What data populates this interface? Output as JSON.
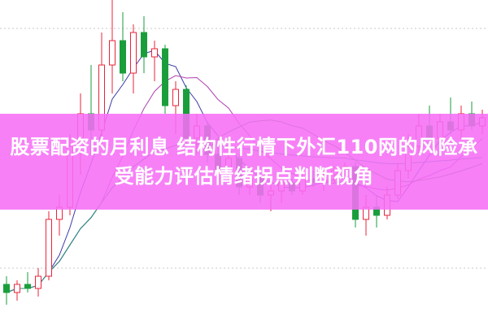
{
  "title": "股票配资的月利息 结构性行情下外汇110网的风险承受能力评估情绪拐点判断视角",
  "colors": {
    "up": "#e8243a",
    "down": "#1a9e3c",
    "banner": "#f66ef6",
    "grid": "#c8c8c8",
    "ma": [
      "#3a3aa8",
      "#b040b0",
      "#3a8a3a",
      "#2a8a8a"
    ]
  },
  "chart_data": {
    "type": "candlestick",
    "grid": "dashed horizontal",
    "moving_averages": [
      5,
      10,
      20,
      60
    ],
    "candles": [
      [
        8,
        10,
        3,
        6
      ],
      [
        6,
        9,
        4,
        8
      ],
      [
        8,
        11,
        6,
        7
      ],
      [
        7,
        12,
        5,
        10
      ],
      [
        10,
        26,
        9,
        24
      ],
      [
        24,
        30,
        20,
        27
      ],
      [
        27,
        45,
        25,
        42
      ],
      [
        42,
        55,
        35,
        50
      ],
      [
        50,
        62,
        40,
        46
      ],
      [
        46,
        70,
        42,
        62
      ],
      [
        62,
        80,
        55,
        68
      ],
      [
        68,
        75,
        58,
        60
      ],
      [
        60,
        72,
        55,
        70
      ],
      [
        70,
        74,
        60,
        64
      ],
      [
        64,
        68,
        58,
        66
      ],
      [
        66,
        67,
        50,
        52
      ],
      [
        52,
        58,
        45,
        56
      ],
      [
        56,
        57,
        40,
        44
      ],
      [
        44,
        50,
        40,
        47
      ],
      [
        47,
        48,
        38,
        40
      ],
      [
        40,
        44,
        34,
        36
      ],
      [
        36,
        42,
        33,
        39
      ],
      [
        39,
        40,
        30,
        32
      ],
      [
        32,
        36,
        30,
        34
      ],
      [
        34,
        35,
        28,
        30
      ],
      [
        30,
        33,
        26,
        31
      ],
      [
        31,
        34,
        28,
        33
      ],
      [
        33,
        34,
        30,
        31
      ],
      [
        31,
        35,
        30,
        34
      ],
      [
        34,
        36,
        32,
        33
      ],
      [
        33,
        36,
        31,
        35
      ],
      [
        35,
        37,
        33,
        36
      ],
      [
        36,
        38,
        34,
        37
      ],
      [
        37,
        38,
        22,
        24
      ],
      [
        24,
        30,
        20,
        27
      ],
      [
        27,
        30,
        22,
        25
      ],
      [
        25,
        32,
        24,
        30
      ],
      [
        30,
        38,
        29,
        36
      ],
      [
        36,
        45,
        34,
        42
      ],
      [
        42,
        50,
        40,
        47
      ],
      [
        47,
        52,
        42,
        44
      ],
      [
        44,
        50,
        42,
        48
      ],
      [
        48,
        54,
        45,
        46
      ],
      [
        46,
        52,
        44,
        50
      ],
      [
        50,
        53,
        46,
        47
      ],
      [
        47,
        51,
        45,
        49
      ]
    ],
    "candle_format": [
      "open",
      "high",
      "low",
      "close"
    ]
  }
}
